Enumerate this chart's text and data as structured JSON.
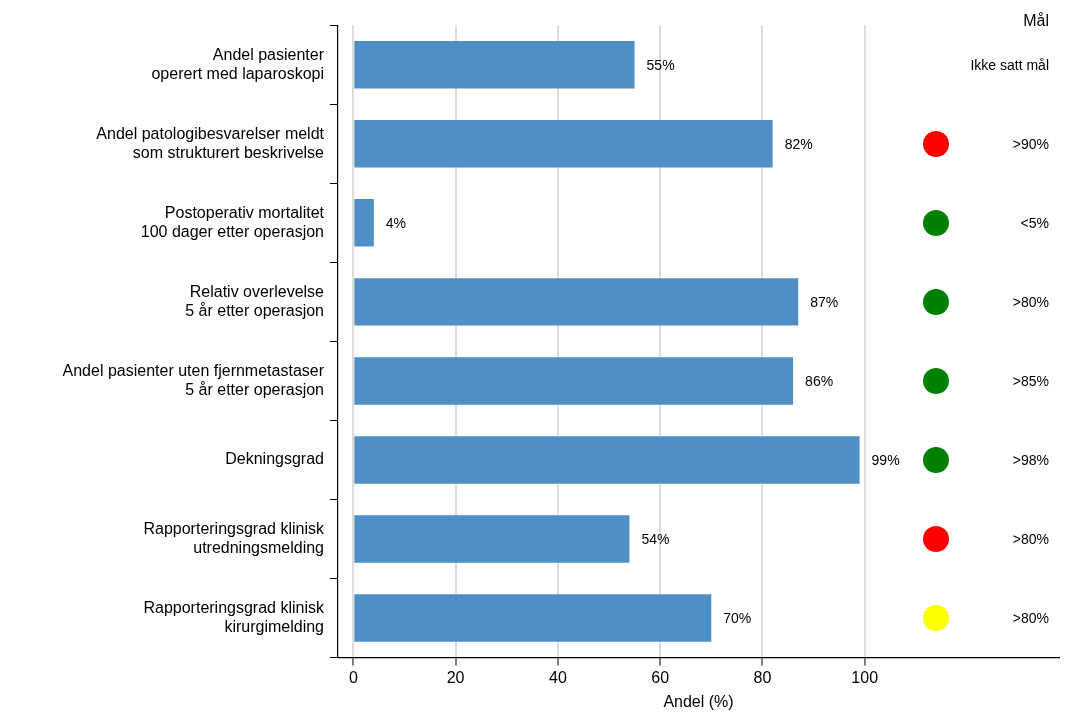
{
  "chart_data": {
    "type": "bar",
    "orientation": "horizontal",
    "xlabel": "Andel (%)",
    "categories": [
      "Andel pasienter\noperert med laparoskopi",
      "Andel patologibesvarelser meldt\nsom strukturert beskrivelse",
      "Postoperativ mortalitet\n100 dager etter operasjon",
      "Relativ overlevelse\n5 år etter operasjon",
      "Andel pasienter uten fjernmetastaser\n5 år etter operasjon",
      "Dekningsgrad",
      "Rapporteringsgrad klinisk\nutredningsmelding",
      "Rapporteringsgrad klinisk\nkirurgimelding"
    ],
    "values": [
      55,
      82,
      4,
      87,
      86,
      99,
      54,
      70
    ],
    "value_labels": [
      "55%",
      "82%",
      "4%",
      "87%",
      "86%",
      "99%",
      "54%",
      "70%"
    ],
    "color": "#4f8fc6",
    "xlim": [
      -3,
      138
    ],
    "xticks": [
      0,
      20,
      40,
      60,
      80,
      100
    ],
    "grid": "x",
    "legend": false,
    "annotations": [
      "Mål",
      "Ikke satt mål",
      ">90%",
      "<5%",
      ">80%",
      ">85%",
      ">98%",
      ">80%",
      ">80%"
    ]
  }
}
